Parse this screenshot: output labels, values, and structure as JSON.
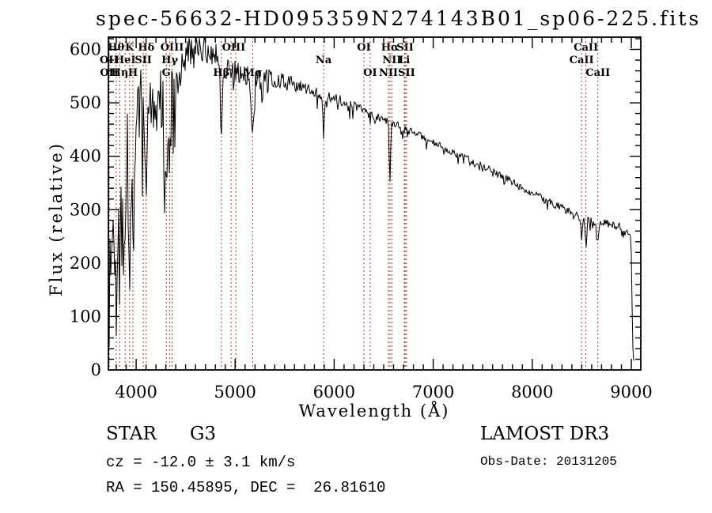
{
  "title": "spec-56632-HD095359N274143B01_sp06-225.fits",
  "annotations": {
    "class_label": "STAR",
    "subclass": "G3",
    "cz": "cz = -12.0 ± 3.1 km/s",
    "radec": "RA = 150.45895, DEC =  26.81610",
    "survey": "LAMOST DR3",
    "obs_date": "Obs-Date: 20131205"
  },
  "chart_data": {
    "type": "line",
    "title": "spec-56632-HD095359N274143B01_sp06-225.fits",
    "xlabel": "Wavelength (Å)",
    "ylabel": "Flux (relative)",
    "xlim": [
      3720,
      9096
    ],
    "ylim": [
      0,
      623
    ],
    "xticks": [
      4000,
      5000,
      6000,
      7000,
      8000,
      9000
    ],
    "yticks": [
      0,
      100,
      200,
      300,
      400,
      500,
      600
    ],
    "x_minor_step": 100,
    "y_minor_step": 20,
    "grid": false,
    "line_color": "#000000",
    "marker_line_color": "#9e3a33",
    "spectral_lines": [
      {
        "label": "OII",
        "wl": 3726,
        "row": 2
      },
      {
        "label": "OII",
        "wl": 3729,
        "row": 3
      },
      {
        "label": "Hθ",
        "wl": 3798,
        "row": 1
      },
      {
        "label": "Hη",
        "wl": 3835,
        "row": 3
      },
      {
        "label": "HeI",
        "wl": 3889,
        "row": 2
      },
      {
        "label": "K",
        "wl": 3934,
        "row": 1
      },
      {
        "label": "H",
        "wl": 3968,
        "row": 3
      },
      {
        "label": "SII",
        "wl": 4072,
        "row": 2
      },
      {
        "label": "Hδ",
        "wl": 4102,
        "row": 1
      },
      {
        "label": "G",
        "wl": 4305,
        "row": 3
      },
      {
        "label": "Hγ",
        "wl": 4340,
        "row": 2
      },
      {
        "label": "OIII",
        "wl": 4363,
        "row": 1
      },
      {
        "label": "Hβ",
        "wl": 4861,
        "row": 3
      },
      {
        "label": "OIII",
        "wl": 4959,
        "row": 1,
        "label_wl": 4985
      },
      {
        "label": "",
        "wl": 5007,
        "row": 1
      },
      {
        "label": "Mg",
        "wl": 5177,
        "row": 3
      },
      {
        "label": "Na",
        "wl": 5893,
        "row": 2
      },
      {
        "label": "OI",
        "wl": 6300,
        "row": 1
      },
      {
        "label": "OI",
        "wl": 6363,
        "row": 3
      },
      {
        "label": "NII",
        "wl": 6548,
        "row": 3
      },
      {
        "label": "Hα",
        "wl": 6563,
        "row": 1
      },
      {
        "label": "NII",
        "wl": 6583,
        "row": 2
      },
      {
        "label": "Li",
        "wl": 6708,
        "row": 2
      },
      {
        "label": "SII",
        "wl": 6716,
        "row": 1
      },
      {
        "label": "SII",
        "wl": 6731,
        "row": 3
      },
      {
        "label": "CaII",
        "wl": 8498,
        "row": 2
      },
      {
        "label": "CaII",
        "wl": 8542,
        "row": 1
      },
      {
        "label": "CaII",
        "wl": 8662,
        "row": 3
      }
    ],
    "spectrum": {
      "seed": 1337,
      "continuum": [
        [
          3720,
          60
        ],
        [
          3735,
          170
        ],
        [
          3760,
          235
        ],
        [
          3790,
          265
        ],
        [
          3830,
          285
        ],
        [
          3870,
          345
        ],
        [
          3910,
          395
        ],
        [
          3950,
          415
        ],
        [
          4000,
          450
        ],
        [
          4050,
          480
        ],
        [
          4100,
          495
        ],
        [
          4150,
          510
        ],
        [
          4200,
          508
        ],
        [
          4250,
          515
        ],
        [
          4300,
          512
        ],
        [
          4350,
          535
        ],
        [
          4400,
          560
        ],
        [
          4450,
          575
        ],
        [
          4500,
          585
        ],
        [
          4550,
          592
        ],
        [
          4600,
          598
        ],
        [
          4650,
          601
        ],
        [
          4700,
          603
        ],
        [
          4750,
          599
        ],
        [
          4800,
          593
        ],
        [
          4860,
          580
        ],
        [
          4900,
          568
        ],
        [
          4950,
          562
        ],
        [
          5000,
          558
        ],
        [
          5060,
          556
        ],
        [
          5120,
          552
        ],
        [
          5180,
          545
        ],
        [
          5250,
          549
        ],
        [
          5350,
          546
        ],
        [
          5450,
          542
        ],
        [
          5550,
          538
        ],
        [
          5650,
          532
        ],
        [
          5750,
          526
        ],
        [
          5850,
          518
        ],
        [
          5950,
          512
        ],
        [
          6050,
          506
        ],
        [
          6150,
          498
        ],
        [
          6250,
          490
        ],
        [
          6350,
          480
        ],
        [
          6450,
          472
        ],
        [
          6550,
          464
        ],
        [
          6650,
          456
        ],
        [
          6750,
          448
        ],
        [
          6850,
          440
        ],
        [
          6950,
          430
        ],
        [
          7050,
          421
        ],
        [
          7150,
          412
        ],
        [
          7250,
          403
        ],
        [
          7350,
          395
        ],
        [
          7450,
          386
        ],
        [
          7550,
          377
        ],
        [
          7650,
          367
        ],
        [
          7750,
          357
        ],
        [
          7850,
          347
        ],
        [
          7950,
          336
        ],
        [
          8050,
          326
        ],
        [
          8150,
          316
        ],
        [
          8250,
          307
        ],
        [
          8350,
          298
        ],
        [
          8450,
          290
        ],
        [
          8550,
          283
        ],
        [
          8650,
          277
        ],
        [
          8750,
          274
        ],
        [
          8850,
          270
        ],
        [
          8950,
          263
        ],
        [
          8990,
          258
        ],
        [
          9000,
          235
        ],
        [
          9008,
          120
        ],
        [
          9016,
          45
        ],
        [
          9024,
          22
        ],
        [
          9032,
          8
        ]
      ],
      "absorption_features": [
        {
          "wl": 3798,
          "depth": 110,
          "sigma": 7
        },
        {
          "wl": 3835,
          "depth": 110,
          "sigma": 7
        },
        {
          "wl": 3889,
          "depth": 140,
          "sigma": 8
        },
        {
          "wl": 3934,
          "depth": 190,
          "sigma": 8
        },
        {
          "wl": 3968,
          "depth": 185,
          "sigma": 8
        },
        {
          "wl": 4102,
          "depth": 170,
          "sigma": 8
        },
        {
          "wl": 4227,
          "depth": 60,
          "sigma": 6
        },
        {
          "wl": 4305,
          "depth": 120,
          "sigma": 11
        },
        {
          "wl": 4340,
          "depth": 150,
          "sigma": 9
        },
        {
          "wl": 4383,
          "depth": 55,
          "sigma": 6
        },
        {
          "wl": 4861,
          "depth": 150,
          "sigma": 9
        },
        {
          "wl": 5175,
          "depth": 95,
          "sigma": 13
        },
        {
          "wl": 5270,
          "depth": 35,
          "sigma": 9
        },
        {
          "wl": 5893,
          "depth": 75,
          "sigma": 8
        },
        {
          "wl": 6563,
          "depth": 105,
          "sigma": 7
        },
        {
          "wl": 8498,
          "depth": 38,
          "sigma": 7
        },
        {
          "wl": 8542,
          "depth": 52,
          "sigma": 8
        },
        {
          "wl": 8662,
          "depth": 42,
          "sigma": 8
        }
      ],
      "noise_profile": [
        [
          3720,
          120
        ],
        [
          3800,
          112
        ],
        [
          3900,
          100
        ],
        [
          4000,
          92
        ],
        [
          4150,
          85
        ],
        [
          4300,
          70
        ],
        [
          4450,
          48
        ],
        [
          4600,
          32
        ],
        [
          4800,
          26
        ],
        [
          5000,
          21
        ],
        [
          5300,
          17
        ],
        [
          5600,
          13
        ],
        [
          6000,
          10
        ],
        [
          6500,
          8
        ],
        [
          7000,
          7
        ],
        [
          7500,
          6
        ],
        [
          8000,
          7
        ],
        [
          8500,
          8
        ],
        [
          9000,
          7
        ],
        [
          9032,
          5
        ]
      ]
    }
  }
}
